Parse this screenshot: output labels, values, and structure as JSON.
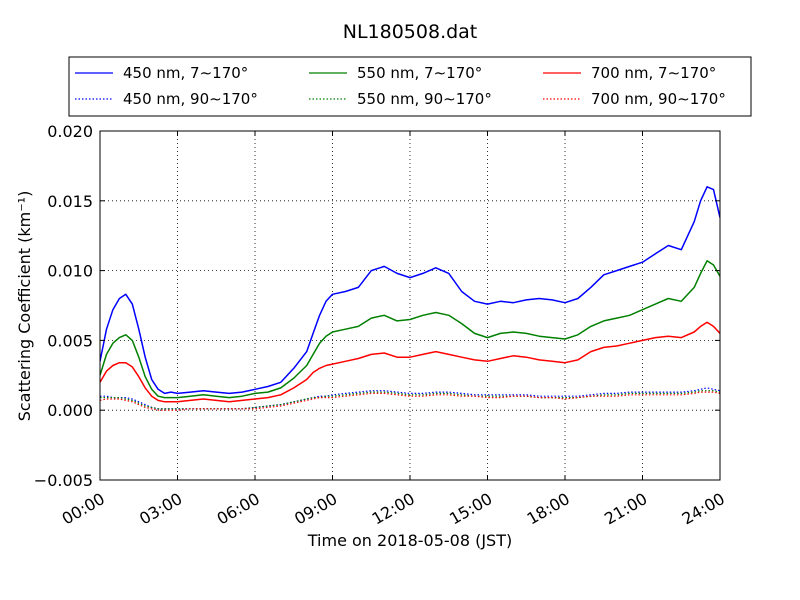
{
  "chart_data": {
    "type": "line",
    "title": "NL180508.dat",
    "xlabel": "Time on 2018-05-08 (JST)",
    "ylabel": "Scattering Coefficient (km⁻¹)",
    "xlim": [
      0,
      24
    ],
    "ylim": [
      -0.005,
      0.02
    ],
    "grid": true,
    "legend_position": "top, above plot, 3 columns",
    "x_ticks": [
      "00:00",
      "03:00",
      "06:00",
      "09:00",
      "12:00",
      "15:00",
      "18:00",
      "21:00",
      "24:00"
    ],
    "y_ticks": [
      "−0.005",
      "0.000",
      "0.005",
      "0.010",
      "0.015",
      "0.020"
    ],
    "x_hours": [
      0,
      0.25,
      0.5,
      0.75,
      1,
      1.25,
      1.5,
      1.75,
      2,
      2.25,
      2.5,
      2.75,
      3,
      3.5,
      4,
      4.5,
      5,
      5.5,
      6,
      6.5,
      7,
      7.5,
      8,
      8.25,
      8.5,
      8.75,
      9,
      9.5,
      10,
      10.5,
      11,
      11.5,
      12,
      12.5,
      13,
      13.5,
      14,
      14.5,
      15,
      15.5,
      16,
      16.5,
      17,
      17.5,
      18,
      18.5,
      19,
      19.5,
      20,
      20.5,
      21,
      21.5,
      22,
      22.5,
      23,
      23.25,
      23.5,
      23.75,
      24
    ],
    "series": [
      {
        "name": "450 nm, 7∼170°",
        "color": "#0000ff",
        "style": "solid",
        "values": [
          0.0035,
          0.0058,
          0.0072,
          0.008,
          0.0083,
          0.0076,
          0.0058,
          0.0038,
          0.0022,
          0.0015,
          0.0012,
          0.0013,
          0.0012,
          0.0013,
          0.0014,
          0.0013,
          0.0012,
          0.0013,
          0.0015,
          0.0017,
          0.002,
          0.003,
          0.0042,
          0.0055,
          0.0068,
          0.0078,
          0.0083,
          0.0085,
          0.0088,
          0.01,
          0.0103,
          0.0098,
          0.0095,
          0.0098,
          0.0102,
          0.0098,
          0.0085,
          0.0078,
          0.0076,
          0.0078,
          0.0077,
          0.0079,
          0.008,
          0.0079,
          0.0077,
          0.008,
          0.0088,
          0.0097,
          0.01,
          0.0103,
          0.0106,
          0.0112,
          0.0118,
          0.0115,
          0.0135,
          0.015,
          0.016,
          0.0158,
          0.0138
        ]
      },
      {
        "name": "550 nm, 7∼170°",
        "color": "#008000",
        "style": "solid",
        "values": [
          0.0025,
          0.004,
          0.0048,
          0.0052,
          0.0054,
          0.005,
          0.0038,
          0.0024,
          0.0015,
          0.001,
          0.0009,
          0.0009,
          0.0009,
          0.001,
          0.0011,
          0.001,
          0.0009,
          0.001,
          0.0012,
          0.0013,
          0.0016,
          0.0023,
          0.0032,
          0.004,
          0.0048,
          0.0053,
          0.0056,
          0.0058,
          0.006,
          0.0066,
          0.0068,
          0.0064,
          0.0065,
          0.0068,
          0.007,
          0.0068,
          0.0062,
          0.0055,
          0.0052,
          0.0055,
          0.0056,
          0.0055,
          0.0053,
          0.0052,
          0.0051,
          0.0054,
          0.006,
          0.0064,
          0.0066,
          0.0068,
          0.0072,
          0.0076,
          0.008,
          0.0078,
          0.0088,
          0.0098,
          0.0107,
          0.0104,
          0.0096
        ]
      },
      {
        "name": "700 nm, 7∼170°",
        "color": "#ff0000",
        "style": "solid",
        "values": [
          0.002,
          0.0028,
          0.0032,
          0.0034,
          0.0034,
          0.0031,
          0.0024,
          0.0016,
          0.001,
          0.0007,
          0.0006,
          0.0006,
          0.0006,
          0.0007,
          0.0008,
          0.0007,
          0.0006,
          0.0007,
          0.0008,
          0.0009,
          0.0011,
          0.0016,
          0.0022,
          0.0027,
          0.003,
          0.0032,
          0.0033,
          0.0035,
          0.0037,
          0.004,
          0.0041,
          0.0038,
          0.0038,
          0.004,
          0.0042,
          0.004,
          0.0038,
          0.0036,
          0.0035,
          0.0037,
          0.0039,
          0.0038,
          0.0036,
          0.0035,
          0.0034,
          0.0036,
          0.0042,
          0.0045,
          0.0046,
          0.0048,
          0.005,
          0.0052,
          0.0053,
          0.0052,
          0.0056,
          0.006,
          0.0063,
          0.006,
          0.0055
        ]
      },
      {
        "name": "450 nm, 90∼170°",
        "color": "#0000ff",
        "style": "dotted",
        "values": [
          0.001,
          0.001,
          0.0009,
          0.0009,
          0.0009,
          0.0008,
          0.0006,
          0.0004,
          0.0002,
          0.0001,
          0.0001,
          0.0001,
          0.0001,
          0.0001,
          0.0001,
          0.0001,
          0.0001,
          0.0001,
          0.0002,
          0.0003,
          0.0004,
          0.0006,
          0.0008,
          0.0009,
          0.001,
          0.001,
          0.0011,
          0.0012,
          0.0013,
          0.0014,
          0.0014,
          0.0013,
          0.0012,
          0.0012,
          0.0013,
          0.0013,
          0.0012,
          0.0011,
          0.0011,
          0.0011,
          0.0011,
          0.0011,
          0.001,
          0.001,
          0.001,
          0.001,
          0.0011,
          0.0012,
          0.0012,
          0.0013,
          0.0013,
          0.0013,
          0.0013,
          0.0013,
          0.0014,
          0.0015,
          0.0016,
          0.0015,
          0.0014
        ]
      },
      {
        "name": "550 nm, 90∼170°",
        "color": "#008000",
        "style": "dotted",
        "values": [
          0.0009,
          0.0009,
          0.0009,
          0.0009,
          0.0008,
          0.0007,
          0.0005,
          0.0003,
          0.0002,
          0.0001,
          0.0001,
          0.0001,
          0.0001,
          0.0001,
          0.0001,
          0.0001,
          0.0001,
          0.0001,
          0.0002,
          0.0003,
          0.0004,
          0.0006,
          0.0008,
          0.0009,
          0.0009,
          0.001,
          0.001,
          0.0011,
          0.0012,
          0.0013,
          0.0013,
          0.0012,
          0.0011,
          0.0011,
          0.0012,
          0.0012,
          0.0011,
          0.001,
          0.001,
          0.001,
          0.001,
          0.001,
          0.0009,
          0.0009,
          0.0009,
          0.0009,
          0.001,
          0.0011,
          0.0011,
          0.0012,
          0.0012,
          0.0012,
          0.0012,
          0.0012,
          0.0013,
          0.0014,
          0.0014,
          0.0014,
          0.0013
        ]
      },
      {
        "name": "700 nm, 90∼170°",
        "color": "#ff0000",
        "style": "dotted",
        "values": [
          0.0007,
          0.0008,
          0.0008,
          0.0008,
          0.0007,
          0.0006,
          0.0004,
          0.0002,
          0.0001,
          0.0,
          0.0,
          0.0,
          0.0,
          0.0001,
          0.0001,
          0.0001,
          0.0001,
          0.0001,
          0.0001,
          0.0002,
          0.0003,
          0.0005,
          0.0007,
          0.0008,
          0.0009,
          0.0009,
          0.0009,
          0.001,
          0.0011,
          0.0012,
          0.0012,
          0.0011,
          0.001,
          0.001,
          0.0011,
          0.0011,
          0.001,
          0.001,
          0.0009,
          0.0009,
          0.001,
          0.001,
          0.0009,
          0.0009,
          0.0008,
          0.0009,
          0.001,
          0.001,
          0.001,
          0.0011,
          0.0011,
          0.0011,
          0.0011,
          0.0011,
          0.0012,
          0.0013,
          0.0013,
          0.0013,
          0.0012
        ]
      }
    ]
  }
}
